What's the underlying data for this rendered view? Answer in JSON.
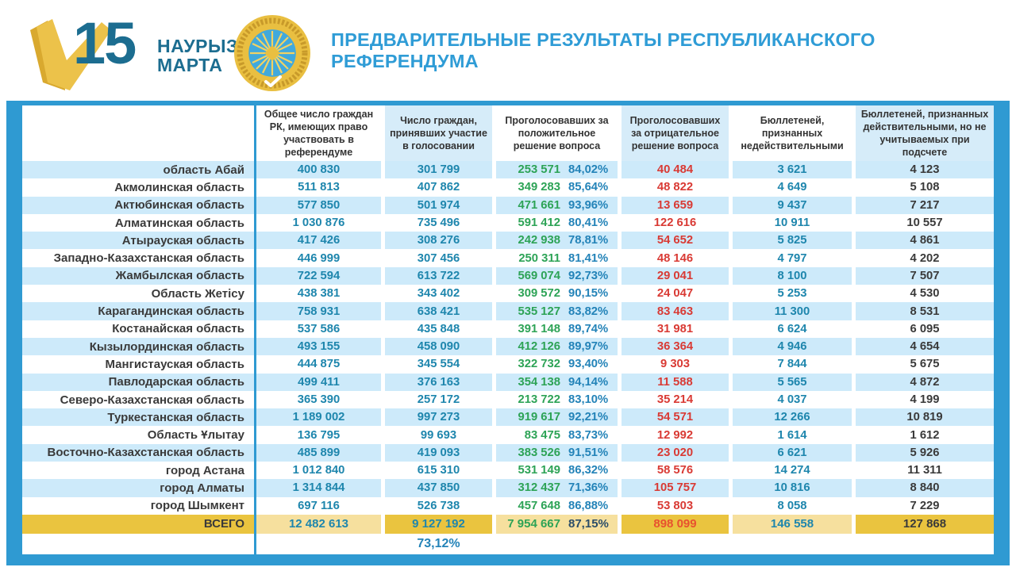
{
  "header": {
    "logo": {
      "number": "15",
      "word1": "НАУРЫЗ",
      "word2": "МАРТА"
    },
    "emblem_name": "central-referendum-commission-seal",
    "title": "ПРЕДВАРИТЕЛЬНЫЕ РЕЗУЛЬТАТЫ РЕСПУБЛИКАНСКОГО РЕФЕРЕНДУМА"
  },
  "colors": {
    "title_blue": "#2f9cd6",
    "frame_blue": "#2f9ad2",
    "row_light_blue": "#cdeafa",
    "header_light_blue": "#d6ecf9",
    "gold_dark": "#eac43f",
    "gold_light": "#f6e09e",
    "number_teal": "#1e86ad",
    "positive_green": "#2da356",
    "negative_red": "#d93a34",
    "logo_petrol": "#1c6d90",
    "logo_gold": "#ecc24a"
  },
  "table": {
    "columns": [
      "",
      "Общее число граждан РК, имеющих право участвовать в референдуме",
      "Число граждан, принявших участие в голосовании",
      "Проголосовавших за положительное решение вопроса",
      "Проголосовавших за отрицательное решение вопроса",
      "Бюллетеней, признанных недействительными",
      "Бюллетеней, признанных действительными, но не учитываемых при подсчете"
    ],
    "rows": [
      {
        "region": "область Абай",
        "total": "400 830",
        "participated": "301 799",
        "positive": "253 571",
        "positive_pct": "84,02%",
        "negative": "40 484",
        "invalid": "3 621",
        "valid_not_counted": "4 123"
      },
      {
        "region": "Акмолинская область",
        "total": "511 813",
        "participated": "407 862",
        "positive": "349 283",
        "positive_pct": "85,64%",
        "negative": "48 822",
        "invalid": "4 649",
        "valid_not_counted": "5 108"
      },
      {
        "region": "Актюбинская область",
        "total": "577 850",
        "participated": "501 974",
        "positive": "471 661",
        "positive_pct": "93,96%",
        "negative": "13 659",
        "invalid": "9 437",
        "valid_not_counted": "7 217"
      },
      {
        "region": "Алматинская область",
        "total": "1 030 876",
        "participated": "735 496",
        "positive": "591 412",
        "positive_pct": "80,41%",
        "negative": "122 616",
        "invalid": "10 911",
        "valid_not_counted": "10 557"
      },
      {
        "region": "Атырауская область",
        "total": "417 426",
        "participated": "308 276",
        "positive": "242 938",
        "positive_pct": "78,81%",
        "negative": "54 652",
        "invalid": "5 825",
        "valid_not_counted": "4 861"
      },
      {
        "region": "Западно-Казахстанская область",
        "total": "446 999",
        "participated": "307 456",
        "positive": "250 311",
        "positive_pct": "81,41%",
        "negative": "48 146",
        "invalid": "4 797",
        "valid_not_counted": "4 202"
      },
      {
        "region": "Жамбылская область",
        "total": "722 594",
        "participated": "613 722",
        "positive": "569 074",
        "positive_pct": "92,73%",
        "negative": "29 041",
        "invalid": "8 100",
        "valid_not_counted": "7 507"
      },
      {
        "region": "Область Жетісу",
        "total": "438 381",
        "participated": "343 402",
        "positive": "309 572",
        "positive_pct": "90,15%",
        "negative": "24 047",
        "invalid": "5 253",
        "valid_not_counted": "4 530"
      },
      {
        "region": "Карагандинская область",
        "total": "758 931",
        "participated": "638 421",
        "positive": "535 127",
        "positive_pct": "83,82%",
        "negative": "83 463",
        "invalid": "11 300",
        "valid_not_counted": "8 531"
      },
      {
        "region": "Костанайская область",
        "total": "537 586",
        "participated": "435 848",
        "positive": "391 148",
        "positive_pct": "89,74%",
        "negative": "31 981",
        "invalid": "6 624",
        "valid_not_counted": "6 095"
      },
      {
        "region": "Кызылординская область",
        "total": "493 155",
        "participated": "458 090",
        "positive": "412 126",
        "positive_pct": "89,97%",
        "negative": "36 364",
        "invalid": "4 946",
        "valid_not_counted": "4 654"
      },
      {
        "region": "Мангистауская область",
        "total": "444 875",
        "participated": "345 554",
        "positive": "322 732",
        "positive_pct": "93,40%",
        "negative": "9 303",
        "invalid": "7 844",
        "valid_not_counted": "5 675"
      },
      {
        "region": "Павлодарская область",
        "total": "499 411",
        "participated": "376 163",
        "positive": "354 138",
        "positive_pct": "94,14%",
        "negative": "11 588",
        "invalid": "5 565",
        "valid_not_counted": "4 872"
      },
      {
        "region": "Северо-Казахстанская область",
        "total": "365 390",
        "participated": "257 172",
        "positive": "213 722",
        "positive_pct": "83,10%",
        "negative": "35 214",
        "invalid": "4 037",
        "valid_not_counted": "4 199"
      },
      {
        "region": "Туркестанская область",
        "total": "1 189 002",
        "participated": "997 273",
        "positive": "919 617",
        "positive_pct": "92,21%",
        "negative": "54 571",
        "invalid": "12 266",
        "valid_not_counted": "10 819"
      },
      {
        "region": "Область Ұлытау",
        "total": "136 795",
        "participated": "99 693",
        "positive": "83 475",
        "positive_pct": "83,73%",
        "negative": "12 992",
        "invalid": "1 614",
        "valid_not_counted": "1 612"
      },
      {
        "region": "Восточно-Казахстанская область",
        "total": "485 899",
        "participated": "419 093",
        "positive": "383 526",
        "positive_pct": "91,51%",
        "negative": "23 020",
        "invalid": "6 621",
        "valid_not_counted": "5 926"
      },
      {
        "region": "город Астана",
        "total": "1 012 840",
        "participated": "615 310",
        "positive": "531 149",
        "positive_pct": "86,32%",
        "negative": "58 576",
        "invalid": "14 274",
        "valid_not_counted": "11 311"
      },
      {
        "region": "город Алматы",
        "total": "1 314 844",
        "participated": "437 850",
        "positive": "312 437",
        "positive_pct": "71,36%",
        "negative": "105 757",
        "invalid": "10 816",
        "valid_not_counted": "8 840"
      },
      {
        "region": "город Шымкент",
        "total": "697 116",
        "participated": "526 738",
        "positive": "457 648",
        "positive_pct": "86,88%",
        "negative": "53 803",
        "invalid": "8 058",
        "valid_not_counted": "7 229"
      }
    ],
    "total_row": {
      "label": "ВСЕГО",
      "total": "12 482 613",
      "participated": "9 127 192",
      "positive": "7 954 667",
      "positive_pct": "87,15%",
      "negative": "898 099",
      "invalid": "146 558",
      "valid_not_counted": "127 868"
    },
    "turnout_pct": "73,12%"
  }
}
